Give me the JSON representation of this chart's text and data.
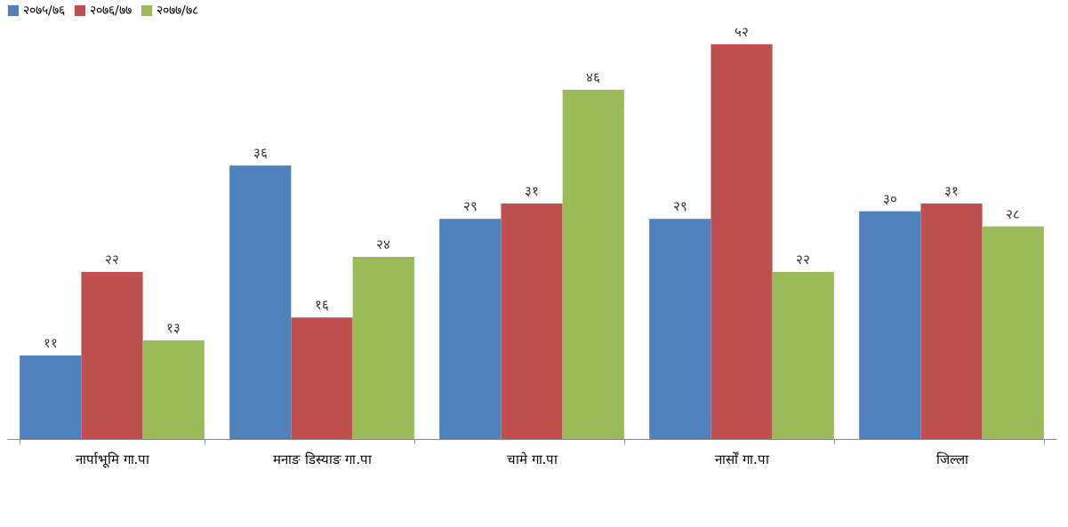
{
  "chart_data": {
    "type": "bar",
    "categories": [
      "नार्पाभूमि  गा.पा",
      "मनाङ डिस्याङ  गा.पा",
      "चामे  गा.पा",
      "नार्सों  गा.पा",
      "जिल्ला"
    ],
    "series": [
      {
        "name": "२०७५/७६",
        "color": "#4f81bd",
        "values": [
          11,
          36,
          29,
          29,
          30
        ],
        "value_labels": [
          "११",
          "३६",
          "२९",
          "२९",
          "३०"
        ]
      },
      {
        "name": "२०७६/७७",
        "color": "#c0504d",
        "values": [
          22,
          16,
          31,
          52,
          31
        ],
        "value_labels": [
          "२२",
          "१६",
          "३१",
          "५२",
          "३१"
        ]
      },
      {
        "name": "२०७७/७८",
        "color": "#9bbb59",
        "values": [
          13,
          24,
          46,
          22,
          28
        ],
        "value_labels": [
          "१३",
          "२४",
          "४६",
          "२२",
          "२८"
        ]
      }
    ],
    "legend": "top left",
    "grid": false
  }
}
